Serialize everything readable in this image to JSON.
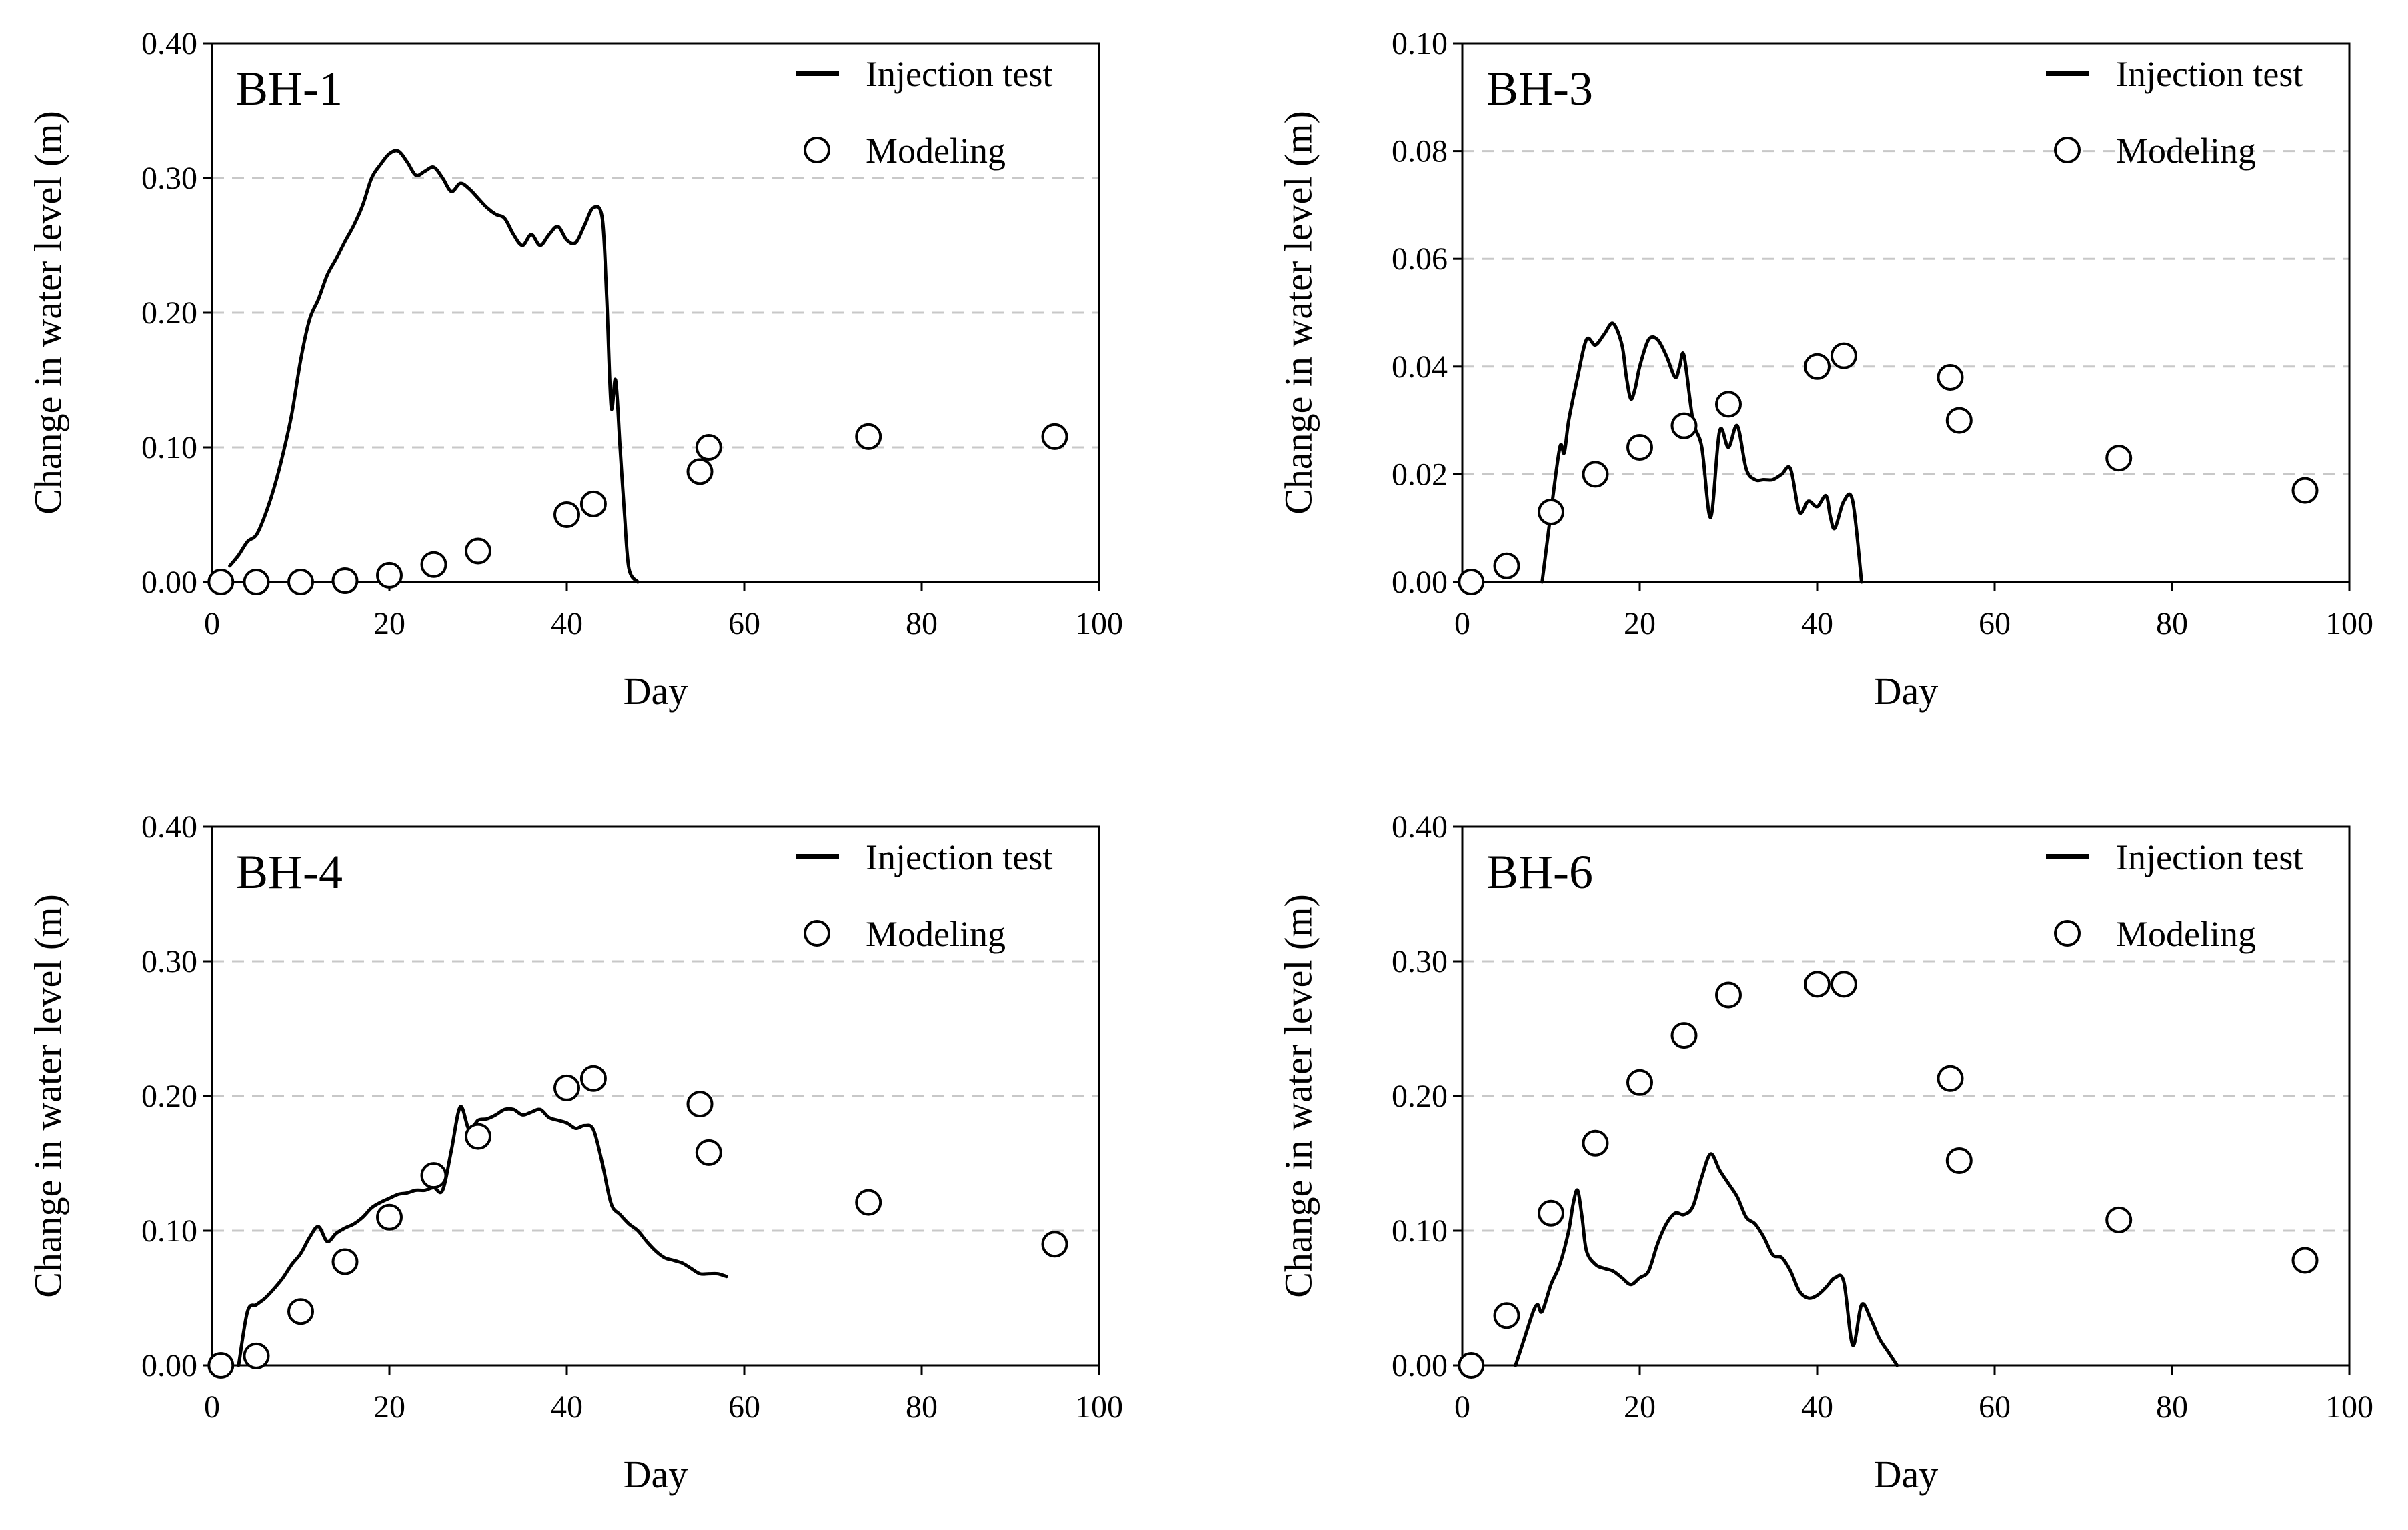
{
  "chart_data": [
    {
      "type": "line",
      "panel_label": "BH-1",
      "xlabel": "Day",
      "ylabel": "Change in water level (m)",
      "xlim": [
        0,
        100
      ],
      "ylim": [
        0,
        0.4
      ],
      "xticks": [
        "0",
        "20",
        "40",
        "60",
        "80",
        "100"
      ],
      "yticks": [
        "0.00",
        "0.10",
        "0.20",
        "0.30",
        "0.40"
      ],
      "grid": "horizontal dashed",
      "legend_position": "top-right",
      "series": [
        {
          "name": "Injection test",
          "style": "line",
          "x": [
            2,
            3,
            4,
            5,
            6,
            7,
            8,
            9,
            10,
            11,
            12,
            13,
            14,
            15,
            16,
            17,
            18,
            19,
            20,
            21,
            22,
            23,
            24,
            25,
            26,
            27,
            28,
            29,
            30,
            31,
            32,
            33,
            34,
            35,
            36,
            37,
            38,
            39,
            40,
            41,
            42,
            43,
            44,
            44.5,
            45,
            45.5,
            46,
            46.5,
            47,
            48
          ],
          "y": [
            0.012,
            0.02,
            0.03,
            0.035,
            0.05,
            0.07,
            0.095,
            0.125,
            0.165,
            0.195,
            0.21,
            0.228,
            0.24,
            0.253,
            0.265,
            0.28,
            0.3,
            0.31,
            0.318,
            0.32,
            0.312,
            0.302,
            0.305,
            0.308,
            0.3,
            0.29,
            0.296,
            0.292,
            0.285,
            0.278,
            0.273,
            0.27,
            0.258,
            0.25,
            0.258,
            0.25,
            0.258,
            0.264,
            0.254,
            0.252,
            0.265,
            0.278,
            0.27,
            0.21,
            0.13,
            0.15,
            0.1,
            0.05,
            0.01,
            0.0
          ]
        },
        {
          "name": "Modeling",
          "style": "marker",
          "x": [
            1,
            5,
            10,
            15,
            20,
            25,
            30,
            40,
            43,
            55,
            56,
            74,
            95
          ],
          "y": [
            0.0,
            0.0,
            0.0,
            0.001,
            0.005,
            0.013,
            0.023,
            0.05,
            0.058,
            0.082,
            0.1,
            0.108,
            0.108
          ]
        }
      ]
    },
    {
      "type": "line",
      "panel_label": "BH-3",
      "xlabel": "Day",
      "ylabel": "Change in water level (m)",
      "xlim": [
        0,
        100
      ],
      "ylim": [
        0,
        0.1
      ],
      "xticks": [
        "0",
        "20",
        "40",
        "60",
        "80",
        "100"
      ],
      "yticks": [
        "0.00",
        "0.02",
        "0.04",
        "0.06",
        "0.08",
        "0.10"
      ],
      "grid": "horizontal dashed",
      "legend_position": "top-right",
      "series": [
        {
          "name": "Injection test",
          "style": "line",
          "x": [
            9,
            10,
            11,
            11.5,
            12,
            13,
            14,
            15,
            16,
            17,
            18,
            18.5,
            19,
            19.5,
            20,
            21,
            22,
            23,
            24,
            24.5,
            25,
            26,
            27,
            28,
            29,
            30,
            31,
            32,
            33,
            34,
            35,
            36,
            37,
            38,
            39,
            40,
            41,
            41.5,
            42,
            43,
            44,
            45
          ],
          "y": [
            0.0,
            0.013,
            0.025,
            0.024,
            0.03,
            0.038,
            0.045,
            0.044,
            0.046,
            0.048,
            0.044,
            0.038,
            0.034,
            0.036,
            0.04,
            0.045,
            0.045,
            0.042,
            0.038,
            0.04,
            0.042,
            0.03,
            0.025,
            0.012,
            0.028,
            0.025,
            0.029,
            0.021,
            0.019,
            0.019,
            0.019,
            0.02,
            0.021,
            0.013,
            0.015,
            0.014,
            0.016,
            0.012,
            0.01,
            0.015,
            0.015,
            0.0
          ]
        },
        {
          "name": "Modeling",
          "style": "marker",
          "x": [
            1,
            5,
            10,
            15,
            20,
            25,
            30,
            40,
            43,
            55,
            56,
            74,
            95
          ],
          "y": [
            0.0,
            0.003,
            0.013,
            0.02,
            0.025,
            0.029,
            0.033,
            0.04,
            0.042,
            0.038,
            0.03,
            0.023,
            0.017
          ]
        }
      ]
    },
    {
      "type": "line",
      "panel_label": "BH-4",
      "xlabel": "Day",
      "ylabel": "Change in water level (m)",
      "xlim": [
        0,
        100
      ],
      "ylim": [
        0,
        0.4
      ],
      "xticks": [
        "0",
        "20",
        "40",
        "60",
        "80",
        "100"
      ],
      "yticks": [
        "0.00",
        "0.10",
        "0.20",
        "0.30",
        "0.40"
      ],
      "grid": "horizontal dashed",
      "legend_position": "top-right",
      "series": [
        {
          "name": "Injection test",
          "style": "line",
          "x": [
            3,
            4,
            5,
            6,
            7,
            8,
            9,
            10,
            11,
            12,
            13,
            14,
            15,
            16,
            17,
            18,
            19,
            20,
            21,
            22,
            23,
            24,
            25,
            26,
            27,
            28,
            29,
            30,
            31,
            32,
            33,
            34,
            35,
            36,
            37,
            38,
            39,
            40,
            41,
            42,
            43,
            44,
            45,
            46,
            47,
            48,
            49,
            50,
            51,
            52,
            53,
            54,
            55,
            56,
            57,
            58
          ],
          "y": [
            0.0,
            0.04,
            0.045,
            0.05,
            0.057,
            0.065,
            0.075,
            0.083,
            0.095,
            0.103,
            0.092,
            0.098,
            0.102,
            0.105,
            0.11,
            0.117,
            0.121,
            0.124,
            0.127,
            0.128,
            0.13,
            0.13,
            0.132,
            0.13,
            0.16,
            0.192,
            0.175,
            0.182,
            0.183,
            0.186,
            0.19,
            0.19,
            0.186,
            0.188,
            0.19,
            0.184,
            0.182,
            0.18,
            0.176,
            0.178,
            0.175,
            0.15,
            0.12,
            0.112,
            0.105,
            0.1,
            0.092,
            0.085,
            0.08,
            0.078,
            0.076,
            0.072,
            0.068,
            0.068,
            0.068,
            0.066
          ]
        },
        {
          "name": "Modeling",
          "style": "marker",
          "x": [
            1,
            5,
            10,
            15,
            20,
            25,
            30,
            40,
            43,
            55,
            56,
            74,
            95
          ],
          "y": [
            0.0,
            0.007,
            0.04,
            0.077,
            0.11,
            0.141,
            0.17,
            0.206,
            0.213,
            0.194,
            0.158,
            0.121,
            0.09
          ]
        }
      ]
    },
    {
      "type": "line",
      "panel_label": "BH-6",
      "xlabel": "Day",
      "ylabel": "Change in water level (m)",
      "xlim": [
        0,
        100
      ],
      "ylim": [
        0,
        0.4
      ],
      "xticks": [
        "0",
        "20",
        "40",
        "60",
        "80",
        "100"
      ],
      "yticks": [
        "0.00",
        "0.10",
        "0.20",
        "0.30",
        "0.40"
      ],
      "grid": "horizontal dashed",
      "legend_position": "top-right",
      "series": [
        {
          "name": "Injection test",
          "style": "line",
          "x": [
            6,
            7,
            8,
            8.5,
            9,
            10,
            11,
            12,
            12.5,
            13,
            13.5,
            14,
            15,
            16,
            17,
            18,
            19,
            20,
            21,
            22,
            23,
            24,
            25,
            26,
            27,
            28,
            29,
            30,
            31,
            32,
            33,
            34,
            35,
            36,
            37,
            38,
            39,
            40,
            41,
            42,
            43,
            44,
            45,
            46,
            47,
            48,
            49
          ],
          "y": [
            0.0,
            0.02,
            0.04,
            0.045,
            0.04,
            0.06,
            0.075,
            0.1,
            0.12,
            0.13,
            0.11,
            0.085,
            0.075,
            0.072,
            0.07,
            0.065,
            0.06,
            0.065,
            0.07,
            0.09,
            0.105,
            0.113,
            0.112,
            0.118,
            0.14,
            0.157,
            0.145,
            0.135,
            0.125,
            0.11,
            0.105,
            0.095,
            0.082,
            0.08,
            0.07,
            0.055,
            0.05,
            0.052,
            0.058,
            0.065,
            0.062,
            0.015,
            0.045,
            0.035,
            0.02,
            0.01,
            0.0
          ]
        },
        {
          "name": "Modeling",
          "style": "marker",
          "x": [
            1,
            5,
            10,
            15,
            20,
            25,
            30,
            40,
            43,
            55,
            56,
            74,
            95
          ],
          "y": [
            0.0,
            0.037,
            0.113,
            0.165,
            0.21,
            0.245,
            0.275,
            0.283,
            0.283,
            0.213,
            0.152,
            0.108,
            0.078
          ]
        }
      ]
    }
  ]
}
